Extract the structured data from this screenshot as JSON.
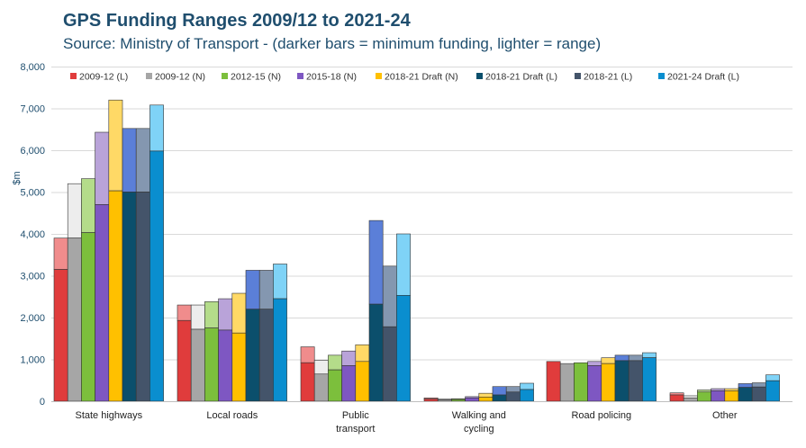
{
  "chart_data": {
    "type": "bar",
    "title": "GPS Funding Ranges 2009/12 to 2021-24",
    "subtitle": "Source: Ministry of Transport - (darker bars = minimum funding, lighter = range)",
    "ylabel": "$m",
    "xlabel": "",
    "ylim": [
      0,
      8000
    ],
    "yticks": [
      "0",
      "1,000",
      "2,000",
      "3,000",
      "4,000",
      "5,000",
      "6,000",
      "7,000",
      "8,000"
    ],
    "ytick_values": [
      0,
      1000,
      2000,
      3000,
      4000,
      5000,
      6000,
      7000,
      8000
    ],
    "grid": true,
    "legend_position": "top",
    "categories": [
      "State highways",
      "Local roads",
      "Public transport",
      "Walking and cycling",
      "Road policing",
      "Other"
    ],
    "category_lines": [
      [
        "State highways"
      ],
      [
        "Local roads"
      ],
      [
        "Public",
        "transport"
      ],
      [
        "Walking and",
        "cycling"
      ],
      [
        "Road policing"
      ],
      [
        "Other"
      ]
    ],
    "series": [
      {
        "name": "2009-12 (L)",
        "dark_color": "#e03c3c",
        "light_color": "#f08c8c",
        "min": [
          3150,
          1930,
          920,
          50,
          950,
          150
        ],
        "max": [
          3900,
          2300,
          1300,
          80,
          950,
          200
        ]
      },
      {
        "name": "2009-12 (N)",
        "dark_color": "#a6a6a6",
        "light_color": "#ededed",
        "min": [
          3900,
          1720,
          650,
          30,
          900,
          80
        ],
        "max": [
          5200,
          2300,
          980,
          50,
          900,
          130
        ]
      },
      {
        "name": "2012-15 (N)",
        "dark_color": "#7cbf3c",
        "light_color": "#b4dc8a",
        "min": [
          4030,
          1750,
          750,
          40,
          920,
          220
        ],
        "max": [
          5320,
          2380,
          1100,
          60,
          920,
          270
        ]
      },
      {
        "name": "2015-18 (N)",
        "dark_color": "#7e57c2",
        "light_color": "#b9a3d9",
        "min": [
          4700,
          1700,
          850,
          80,
          850,
          250
        ],
        "max": [
          6430,
          2450,
          1200,
          110,
          950,
          300
        ]
      },
      {
        "name": "2018-21 Draft (N)",
        "dark_color": "#ffc000",
        "light_color": "#ffd966",
        "min": [
          5030,
          1630,
          950,
          100,
          900,
          250
        ],
        "max": [
          7200,
          2580,
          1350,
          190,
          1040,
          300
        ]
      },
      {
        "name": "2018-21 Draft (L)",
        "dark_color": "#0b4f6c",
        "light_color": "#5b7fd8",
        "min": [
          5000,
          2200,
          2320,
          150,
          970,
          330
        ],
        "max": [
          6520,
          3130,
          4320,
          350,
          1100,
          420
        ]
      },
      {
        "name": "2018-21 (L)",
        "dark_color": "#44546a",
        "light_color": "#8497b0",
        "min": [
          5000,
          2200,
          1780,
          220,
          970,
          340
        ],
        "max": [
          6520,
          3130,
          3230,
          350,
          1100,
          440
        ]
      },
      {
        "name": "2021-24 Draft (L)",
        "dark_color": "#0a8ecf",
        "light_color": "#7fd3f7",
        "min": [
          5980,
          2450,
          2530,
          280,
          1040,
          490
        ],
        "max": [
          7080,
          3280,
          4000,
          430,
          1160,
          630
        ]
      }
    ]
  }
}
